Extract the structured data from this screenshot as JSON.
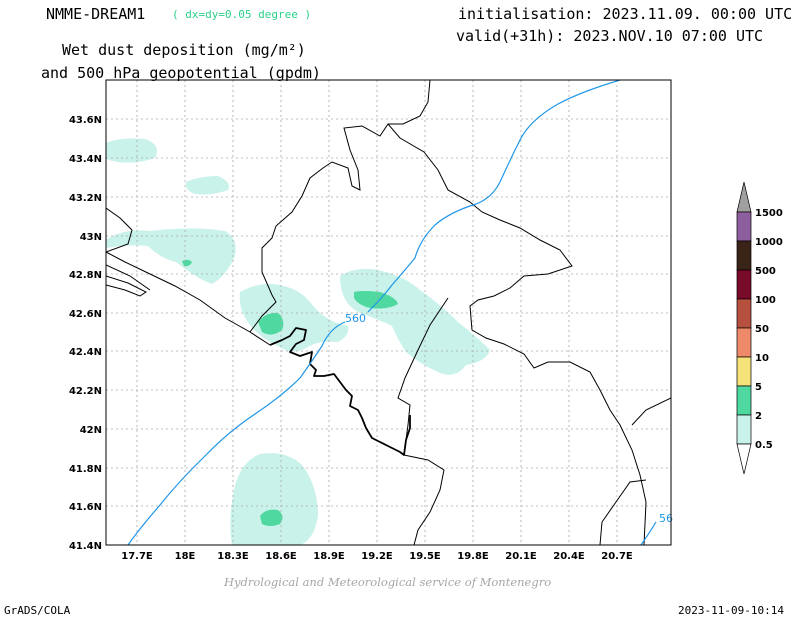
{
  "header": {
    "model": "NMME-DREAM1",
    "resolution": "( dx=dy=0.05 degree )",
    "initialisation": "initialisation: 2023.11.09. 00:00 UTC",
    "valid": "valid(+31h): 2023.NOV.10 07:00 UTC",
    "product_line1": "Wet dust deposition (mg/m²)",
    "product_line2": "and 500 hPa geopotential (gpdm)"
  },
  "map": {
    "lat_labels": [
      "43.6N",
      "43.4N",
      "43.2N",
      "43N",
      "42.8N",
      "42.6N",
      "42.4N",
      "42.2N",
      "42N",
      "41.8N",
      "41.6N",
      "41.4N"
    ],
    "lon_labels": [
      "17.7E",
      "18E",
      "18.3E",
      "18.6E",
      "18.9E",
      "19.2E",
      "19.5E",
      "19.8E",
      "20.1E",
      "20.4E",
      "20.7E"
    ],
    "contour_labels": [
      "560",
      "56"
    ],
    "grid": true
  },
  "legend": {
    "labels": [
      "1500",
      "1000",
      "500",
      "100",
      "50",
      "10",
      "5",
      "2",
      "0.5"
    ],
    "colors": [
      "#a0a0a0",
      "#8e5f9f",
      "#3a2418",
      "#7a0a2a",
      "#b85040",
      "#ee8a6a",
      "#f5e27a",
      "#4fd9a0",
      "#c8f2ea",
      "#ffffff"
    ]
  },
  "footer": {
    "credit": "Hydrological and Meteorological service of Montenegro",
    "software": "GrADS/COLA",
    "timestamp": "2023-11-09-10:14"
  }
}
